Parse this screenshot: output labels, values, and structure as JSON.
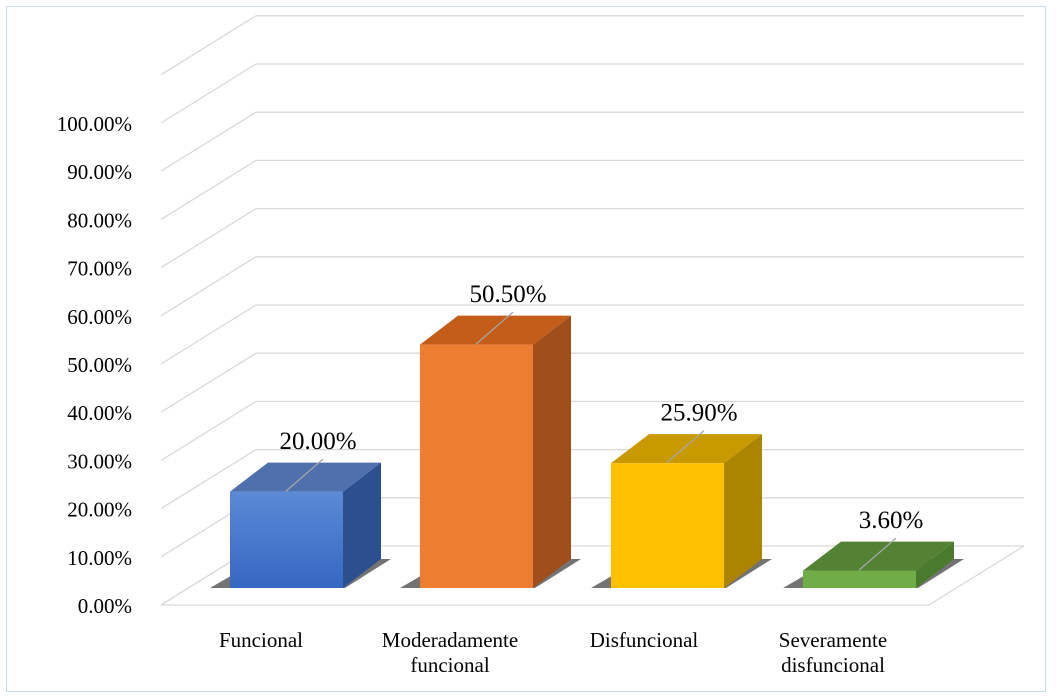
{
  "chart_data": {
    "type": "bar",
    "categories": [
      "Funcional",
      "Moderadamente funcional",
      "Disfuncional",
      "Severamente disfuncional"
    ],
    "category_lines": [
      [
        "Funcional"
      ],
      [
        "Moderadamente",
        "funcional"
      ],
      [
        "Disfuncional"
      ],
      [
        "Severamente",
        "disfuncional"
      ]
    ],
    "values": [
      20.0,
      50.5,
      25.9,
      3.6
    ],
    "data_labels": [
      "20.00%",
      "50.50%",
      "25.90%",
      "3.60%"
    ],
    "ylim": [
      0,
      100
    ],
    "yticks": [
      0,
      10,
      20,
      30,
      40,
      50,
      60,
      70,
      80,
      90,
      100
    ],
    "ytick_labels": [
      "0.00%",
      "10.00%",
      "20.00%",
      "30.00%",
      "40.00%",
      "50.00%",
      "60.00%",
      "70.00%",
      "80.00%",
      "90.00%",
      "100.00%"
    ],
    "grid": true,
    "style": "3d-column",
    "colors": [
      {
        "front_top": "#5b8ad6",
        "front_bottom": "#3567c2",
        "top": "#4f6fad",
        "side": "#2c4f8f"
      },
      {
        "front_top": "#ed7d31",
        "front_bottom": "#ed7d31",
        "top": "#c45c1a",
        "side": "#a04e1c"
      },
      {
        "front_top": "#ffc000",
        "front_bottom": "#ffc000",
        "top": "#c99a00",
        "side": "#ab8500"
      },
      {
        "front_top": "#70ad47",
        "front_bottom": "#70ad47",
        "top": "#548235",
        "side": "#4a7a2d"
      }
    ],
    "gridline_color": "#d9d9d9",
    "leader_color": "#a6a6a6"
  }
}
